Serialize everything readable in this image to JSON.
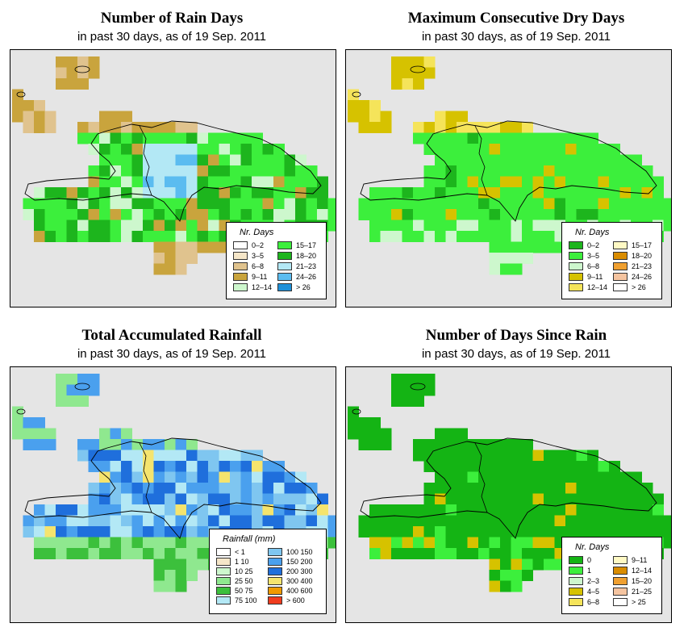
{
  "panels": [
    {
      "id": "rain-days",
      "title": "Number of Rain Days",
      "subtitle": "in past 30 days, as of  19 Sep. 2011",
      "legend": {
        "title": "Nr. Days",
        "items": [
          {
            "label": "0–2",
            "color": "#ffffff"
          },
          {
            "label": "3–5",
            "color": "#f5e6c8"
          },
          {
            "label": "6–8",
            "color": "#e0c38e"
          },
          {
            "label": "9–11",
            "color": "#c9a43d"
          },
          {
            "label": "12–14",
            "color": "#cdf7cd"
          },
          {
            "label": "15–17",
            "color": "#3cef3c"
          },
          {
            "label": "18–20",
            "color": "#1db51d"
          },
          {
            "label": "21–23",
            "color": "#b3e8f5"
          },
          {
            "label": "24–26",
            "color": "#5bbcf0"
          },
          {
            "label": "> 26",
            "color": "#1e90d8"
          }
        ]
      }
    },
    {
      "id": "dry-days",
      "title": "Maximum Consecutive Dry Days",
      "subtitle": "in past 30 days, as of  19 Sep. 2011",
      "legend": {
        "title": "Nr. Days",
        "items": [
          {
            "label": "0–2",
            "color": "#1db51d"
          },
          {
            "label": "3–5",
            "color": "#3cef3c"
          },
          {
            "label": "6–8",
            "color": "#cdf7cd"
          },
          {
            "label": "9–11",
            "color": "#d6c200"
          },
          {
            "label": "12–14",
            "color": "#f5e45a"
          },
          {
            "label": "15–17",
            "color": "#fff9c4"
          },
          {
            "label": "18–20",
            "color": "#d98c00"
          },
          {
            "label": "21–23",
            "color": "#f0a030"
          },
          {
            "label": "24–26",
            "color": "#f5c4a0"
          },
          {
            "label": "> 26",
            "color": "#ffffff"
          }
        ]
      }
    },
    {
      "id": "rainfall",
      "title": "Total Accumulated Rainfall",
      "subtitle": "in past 30 days, as of  19 Sep. 2011",
      "legend": {
        "title": "Rainfall (mm)",
        "items": [
          {
            "label": "< 1",
            "color": "#ffffff"
          },
          {
            "label": "1    10",
            "color": "#f5e6c8"
          },
          {
            "label": "10    25",
            "color": "#cdf7cd"
          },
          {
            "label": "25    50",
            "color": "#8fe88f"
          },
          {
            "label": "50    75",
            "color": "#3cc03c"
          },
          {
            "label": "75  100",
            "color": "#b3e8f5"
          },
          {
            "label": "100  150",
            "color": "#7fc6f0"
          },
          {
            "label": "150  200",
            "color": "#4aa0ee"
          },
          {
            "label": "200  300",
            "color": "#1f6fdc"
          },
          {
            "label": "300  400",
            "color": "#f5e46e"
          },
          {
            "label": "400  600",
            "color": "#f09a00"
          },
          {
            "label": "> 600",
            "color": "#f03c1e"
          }
        ]
      }
    },
    {
      "id": "since-rain",
      "title": "Number of Days Since Rain",
      "subtitle": "in past 30 days, as of  19 Sep. 2011",
      "legend": {
        "title": "Nr. Days",
        "items": [
          {
            "label": "0",
            "color": "#14b414"
          },
          {
            "label": "1",
            "color": "#3cef3c"
          },
          {
            "label": "2–3",
            "color": "#cdf7cd"
          },
          {
            "label": "4–5",
            "color": "#d6c200"
          },
          {
            "label": "6–8",
            "color": "#f5e45a"
          },
          {
            "label": "9–11",
            "color": "#fff9c4"
          },
          {
            "label": "12–14",
            "color": "#d98c00"
          },
          {
            "label": "15–20",
            "color": "#f0a030"
          },
          {
            "label": "21–25",
            "color": "#f5c4a0"
          },
          {
            "label": "> 25",
            "color": "#ffffff"
          }
        ]
      }
    }
  ]
}
